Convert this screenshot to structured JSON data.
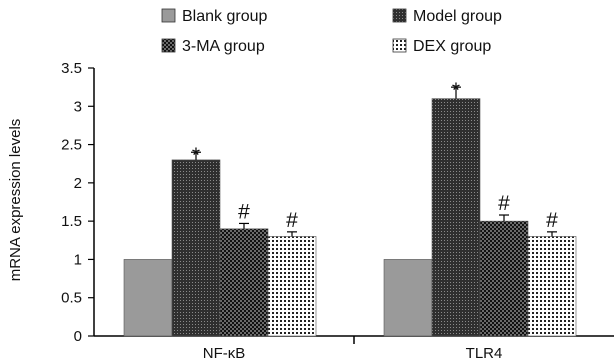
{
  "chart_data": {
    "type": "bar",
    "title": "",
    "xlabel": "",
    "ylabel": "mRNA expression levels",
    "ylim": [
      0,
      3.5
    ],
    "yticks": [
      0,
      0.5,
      1,
      1.5,
      2,
      2.5,
      3,
      3.5
    ],
    "ytick_labels": [
      "0",
      "0.5",
      "1",
      "1.5",
      "2",
      "2.5",
      "3",
      "3.5"
    ],
    "categories": [
      "NF-κB",
      "TLR4"
    ],
    "grid": false,
    "legend_position": "top",
    "series": [
      {
        "name": "Blank group",
        "values": [
          1.0,
          1.0
        ],
        "errors": [
          0,
          0
        ],
        "annotations": [
          "",
          ""
        ],
        "color": "#9a9a9a",
        "pattern": "solid"
      },
      {
        "name": "Model group",
        "values": [
          2.3,
          3.1
        ],
        "errors": [
          0.1,
          0.15
        ],
        "annotations": [
          "*",
          "*"
        ],
        "color": "#3a3a3a",
        "pattern": "fine-dots"
      },
      {
        "name": "3-MA group",
        "values": [
          1.4,
          1.5
        ],
        "errors": [
          0.07,
          0.08
        ],
        "annotations": [
          "#",
          "#"
        ],
        "color": "#1a1a1a",
        "pattern": "checker"
      },
      {
        "name": "DEX group",
        "values": [
          1.3,
          1.3
        ],
        "errors": [
          0.06,
          0.06
        ],
        "annotations": [
          "#",
          "#"
        ],
        "color": "#ffffff",
        "pattern": "grid"
      }
    ]
  }
}
